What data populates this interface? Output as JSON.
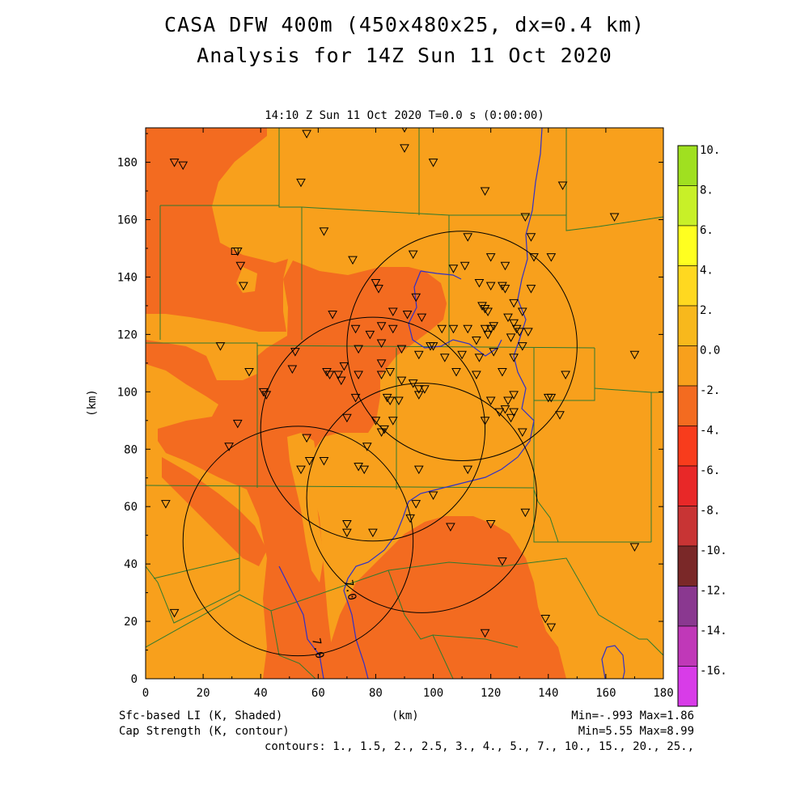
{
  "title": {
    "line1": "CASA DFW 400m (450x480x25, dx=0.4 km)",
    "line2": "Analysis for 14Z Sun 11 Oct 2020"
  },
  "subtitle": "14:10 Z Sun 11 Oct 2020   T=0.0 s (0:00:00)",
  "map": {
    "x_axis_label": "(km)",
    "y_axis_label": "(km)",
    "x_ticks": [
      "0",
      "20",
      "40",
      "60",
      "80",
      "100",
      "120",
      "140",
      "160",
      "180"
    ],
    "y_ticks": [
      "0",
      "20",
      "40",
      "60",
      "80",
      "100",
      "120",
      "140",
      "160",
      "180"
    ],
    "xlim": [
      0,
      180
    ],
    "ylim": [
      0,
      192
    ],
    "contour_labels": [
      "7.0",
      "7.0"
    ],
    "colors": {
      "shade_above_0": "#f8a01c",
      "shade_below_0": "#f36b20",
      "county_lines": "#2f7a2f",
      "contour_lines": "#3030c8",
      "radar_rings": "#000000"
    },
    "radar_rings_km": [
      {
        "cx": 79,
        "cy": 87,
        "r": 39
      },
      {
        "cx": 110,
        "cy": 116,
        "r": 40
      },
      {
        "cx": 53,
        "cy": 48,
        "r": 40
      },
      {
        "cx": 96,
        "cy": 63,
        "r": 40
      }
    ],
    "stations_km": [
      [
        10,
        180
      ],
      [
        13,
        179
      ],
      [
        56,
        190
      ],
      [
        90,
        192
      ],
      [
        90,
        185
      ],
      [
        100,
        180
      ],
      [
        118,
        170
      ],
      [
        145,
        172
      ],
      [
        163,
        161
      ],
      [
        54,
        173
      ],
      [
        132,
        161
      ],
      [
        62,
        156
      ],
      [
        134,
        154
      ],
      [
        112,
        154
      ],
      [
        107,
        143
      ],
      [
        93,
        148
      ],
      [
        120,
        147
      ],
      [
        135,
        147
      ],
      [
        141,
        147
      ],
      [
        125,
        144
      ],
      [
        72,
        146
      ],
      [
        33,
        144
      ],
      [
        111,
        144
      ],
      [
        134,
        136
      ],
      [
        116,
        138
      ],
      [
        120,
        137
      ],
      [
        124,
        137
      ],
      [
        125,
        136
      ],
      [
        80,
        138
      ],
      [
        81,
        136
      ],
      [
        94,
        133
      ],
      [
        86,
        128
      ],
      [
        91,
        127
      ],
      [
        96,
        126
      ],
      [
        34,
        137
      ],
      [
        32,
        149
      ],
      [
        117,
        130
      ],
      [
        118,
        129
      ],
      [
        128,
        131
      ],
      [
        119,
        128
      ],
      [
        126,
        126
      ],
      [
        131,
        128
      ],
      [
        128,
        124
      ],
      [
        133,
        121
      ],
      [
        82,
        123
      ],
      [
        86,
        122
      ],
      [
        73,
        122
      ],
      [
        78,
        120
      ],
      [
        103,
        122
      ],
      [
        100,
        116
      ],
      [
        107,
        122
      ],
      [
        112,
        122
      ],
      [
        118,
        122
      ],
      [
        119,
        120
      ],
      [
        121,
        123
      ],
      [
        120,
        122
      ],
      [
        129,
        122
      ],
      [
        130,
        121
      ],
      [
        127,
        119
      ],
      [
        115,
        118
      ],
      [
        128,
        112
      ],
      [
        131,
        116
      ],
      [
        65,
        127
      ],
      [
        26,
        116
      ],
      [
        52,
        114
      ],
      [
        51,
        108
      ],
      [
        69,
        109
      ],
      [
        74,
        115
      ],
      [
        82,
        117
      ],
      [
        89,
        115
      ],
      [
        95,
        113
      ],
      [
        99,
        116
      ],
      [
        110,
        113
      ],
      [
        116,
        112
      ],
      [
        121,
        114
      ],
      [
        36,
        107
      ],
      [
        63,
        107
      ],
      [
        64,
        106
      ],
      [
        67,
        106
      ],
      [
        68,
        104
      ],
      [
        74,
        106
      ],
      [
        82,
        110
      ],
      [
        82,
        106
      ],
      [
        85,
        107
      ],
      [
        89,
        104
      ],
      [
        97,
        101
      ],
      [
        108,
        107
      ],
      [
        115,
        106
      ],
      [
        124,
        107
      ],
      [
        104,
        112
      ],
      [
        170,
        113
      ],
      [
        146,
        106
      ],
      [
        41,
        100
      ],
      [
        42,
        99
      ],
      [
        73,
        98
      ],
      [
        84,
        98
      ],
      [
        85,
        97
      ],
      [
        93,
        103
      ],
      [
        95,
        101
      ],
      [
        88,
        97
      ],
      [
        95,
        99
      ],
      [
        120,
        97
      ],
      [
        126,
        97
      ],
      [
        128,
        99
      ],
      [
        125,
        94
      ],
      [
        128,
        93
      ],
      [
        140,
        98
      ],
      [
        141,
        98
      ],
      [
        144,
        92
      ],
      [
        32,
        89
      ],
      [
        70,
        91
      ],
      [
        80,
        90
      ],
      [
        82,
        86
      ],
      [
        83,
        87
      ],
      [
        86,
        90
      ],
      [
        118,
        90
      ],
      [
        123,
        93
      ],
      [
        127,
        91
      ],
      [
        131,
        86
      ],
      [
        29,
        81
      ],
      [
        56,
        84
      ],
      [
        77,
        81
      ],
      [
        57,
        76
      ],
      [
        62,
        76
      ],
      [
        74,
        74
      ],
      [
        76,
        73
      ],
      [
        95,
        73
      ],
      [
        112,
        73
      ],
      [
        54,
        73
      ],
      [
        7,
        61
      ],
      [
        100,
        64
      ],
      [
        94,
        61
      ],
      [
        92,
        56
      ],
      [
        70,
        54
      ],
      [
        70,
        51
      ],
      [
        79,
        51
      ],
      [
        106,
        53
      ],
      [
        120,
        54
      ],
      [
        132,
        58
      ],
      [
        124,
        41
      ],
      [
        170,
        46
      ],
      [
        10,
        23
      ],
      [
        139,
        21
      ],
      [
        141,
        18
      ],
      [
        118,
        16
      ]
    ],
    "square_marker_km": [
      31,
      149
    ]
  },
  "colorbar": {
    "labels": [
      "10.",
      "8.",
      "6.",
      "4.",
      "2.",
      "0.0",
      "-2.",
      "-4.",
      "-6.",
      "-8.",
      "-10.",
      "-12.",
      "-14.",
      "-16."
    ],
    "colors": [
      "#a0e020",
      "#c8f028",
      "#ffff20",
      "#ffd820",
      "#f8b81c",
      "#f8a01c",
      "#f36b20",
      "#f83c1c",
      "#e82828",
      "#c83434",
      "#7a2828",
      "#8a3890",
      "#c038b8",
      "#d83ce8"
    ]
  },
  "footer": {
    "left1": "Sfc-based LI (K, Shaded)",
    "left2": "Cap Strength (K, contour)",
    "center": "(km)",
    "right1": "Min=-.993 Max=1.86",
    "right2": "Min=5.55 Max=8.99",
    "contours": "contours: 1., 1.5, 2., 2.5, 3., 4., 5., 7., 10., 15., 20., 25.,"
  }
}
